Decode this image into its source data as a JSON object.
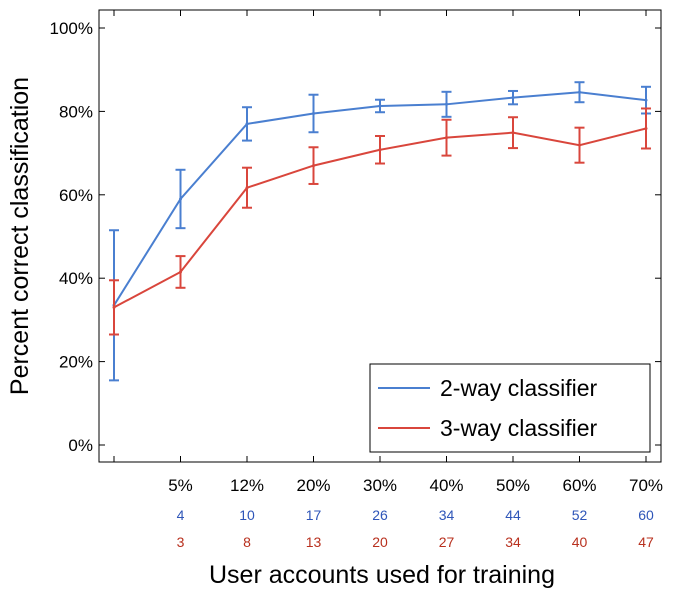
{
  "chart_data": {
    "type": "line",
    "title": "",
    "xlabel": "User accounts used for training",
    "ylabel": "Percent correct classification",
    "x": [
      "",
      "5%",
      "12%",
      "20%",
      "30%",
      "40%",
      "50%",
      "60%",
      "70%"
    ],
    "ylim": [
      0,
      100
    ],
    "yticks": [
      "0%",
      "20%",
      "40%",
      "60%",
      "80%",
      "100%"
    ],
    "yticks_values": [
      0,
      20,
      40,
      60,
      80,
      100
    ],
    "grid": false,
    "legend_position": "bottom-right",
    "series": [
      {
        "name": "2-way classifier",
        "color": "#4a7fd0",
        "values": [
          33.5,
          59.0,
          77.0,
          79.5,
          81.3,
          81.7,
          83.3,
          84.6,
          82.7
        ],
        "error": [
          18.0,
          7.0,
          4.0,
          4.5,
          1.5,
          3.0,
          1.6,
          2.4,
          3.2
        ],
        "counts": [
          "",
          "4",
          "10",
          "17",
          "26",
          "34",
          "44",
          "52",
          "60"
        ]
      },
      {
        "name": "3-way classifier",
        "color": "#d9463c",
        "values": [
          33.0,
          41.5,
          61.7,
          67.0,
          70.8,
          73.7,
          74.9,
          71.9,
          75.9
        ],
        "error": [
          6.5,
          3.8,
          4.8,
          4.4,
          3.3,
          4.3,
          3.7,
          4.2,
          4.8
        ],
        "counts": [
          "",
          "3",
          "8",
          "13",
          "20",
          "27",
          "34",
          "40",
          "47"
        ]
      }
    ]
  }
}
